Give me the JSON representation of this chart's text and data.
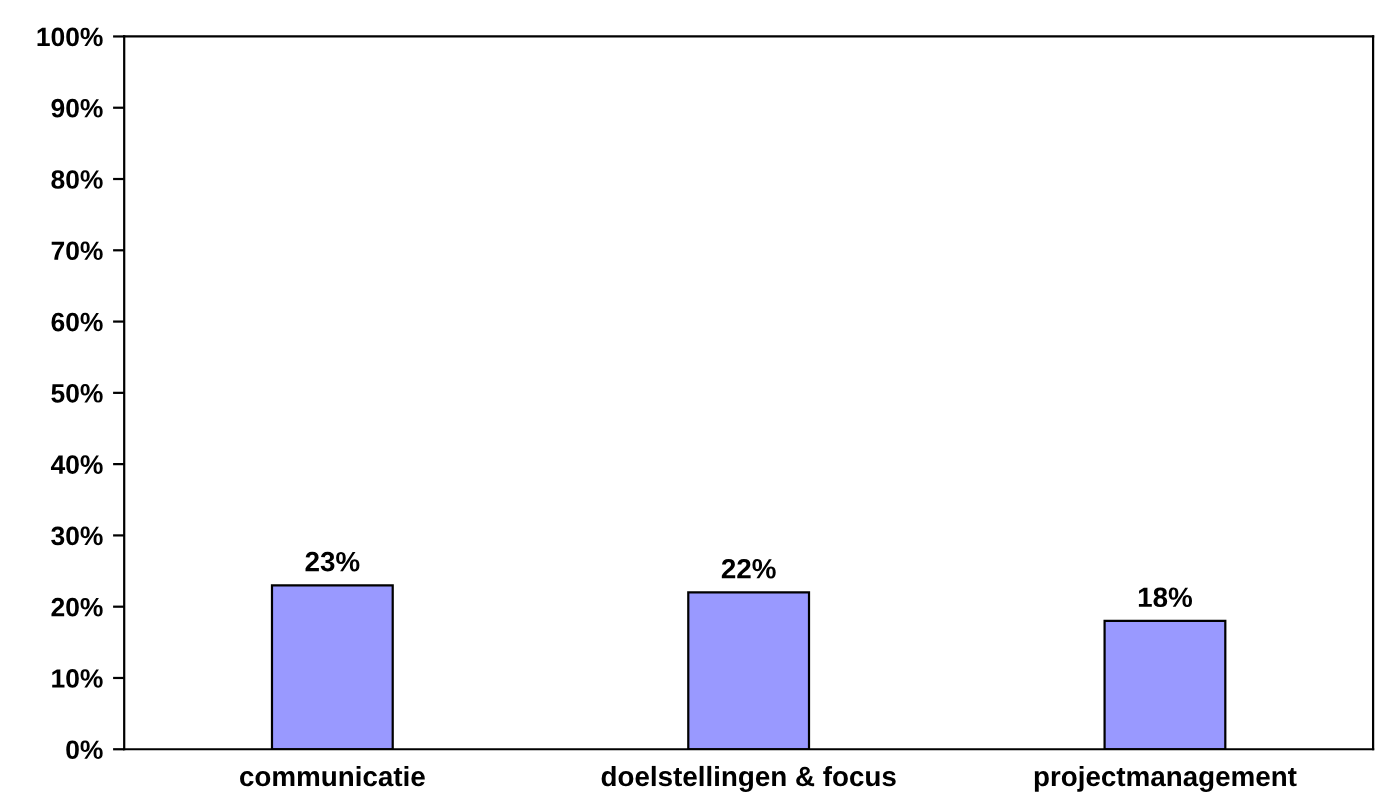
{
  "chart_data": {
    "type": "bar",
    "categories": [
      "communicatie",
      "doelstellingen & focus",
      "projectmanagement"
    ],
    "values": [
      23,
      22,
      18
    ],
    "color": "#9999ff",
    "value_labels": [
      "23%",
      "22%",
      "18%"
    ],
    "ylim": [
      0,
      100
    ],
    "yticks": [
      {
        "value": 0,
        "label": "0%"
      },
      {
        "value": 10,
        "label": "10%"
      },
      {
        "value": 20,
        "label": "20%"
      },
      {
        "value": 30,
        "label": "30%"
      },
      {
        "value": 40,
        "label": "40%"
      },
      {
        "value": 50,
        "label": "50%"
      },
      {
        "value": 60,
        "label": "60%"
      },
      {
        "value": 70,
        "label": "70%"
      },
      {
        "value": 80,
        "label": "80%"
      },
      {
        "value": 90,
        "label": "90%"
      },
      {
        "value": 100,
        "label": "100%"
      }
    ],
    "grid": false,
    "legend": false
  }
}
